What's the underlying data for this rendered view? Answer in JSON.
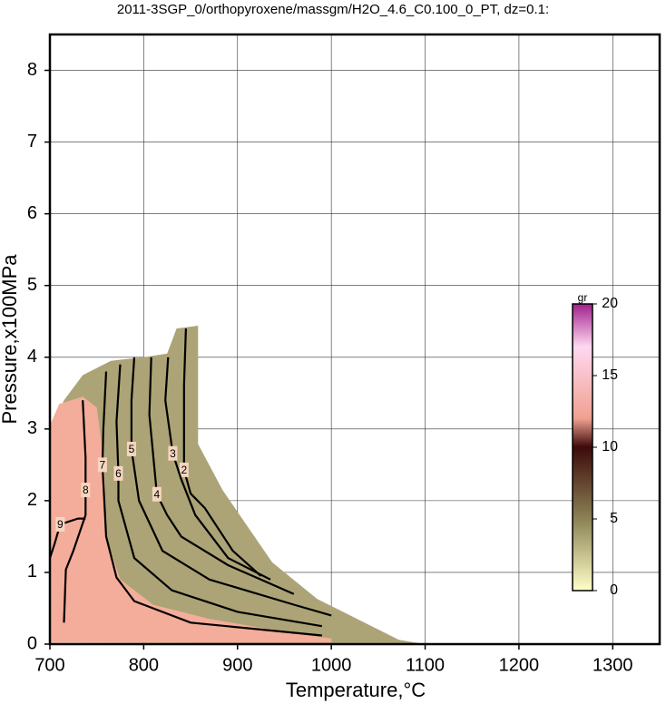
{
  "chart_data": {
    "type": "contour",
    "title": "2011-3SGP_0/orthopyroxene/massgm/H2O_4.6_C0.100_0_PT, dz=0.1:",
    "x_label": "Temperature,°C",
    "y_label": "Pressure,x100MPa",
    "xlim": [
      700,
      1350
    ],
    "ylim": [
      0,
      8.5
    ],
    "xticks": [
      700,
      800,
      900,
      1000,
      1100,
      1200,
      1300
    ],
    "yticks": [
      0,
      1,
      2,
      3,
      4,
      5,
      6,
      7,
      8
    ],
    "grid": true,
    "regions": [
      {
        "color": "#aca476",
        "T": [
          700,
          700,
          715,
          735,
          765,
          800,
          825,
          835,
          858,
          858,
          884,
          937,
          985,
          1043,
          1072,
          1100
        ],
        "P": [
          0.02,
          3.0,
          3.4,
          3.75,
          3.95,
          4.0,
          4.05,
          4.4,
          4.44,
          2.79,
          2.15,
          1.14,
          0.63,
          0.25,
          0.06,
          0.0
        ]
      },
      {
        "color": "#f4ad9a",
        "T": [
          700,
          700,
          710,
          735,
          750,
          758,
          760,
          775,
          810,
          870,
          960,
          1000,
          1000
        ],
        "P": [
          0.02,
          3.05,
          3.35,
          3.45,
          3.3,
          2.5,
          1.5,
          0.9,
          0.55,
          0.35,
          0.15,
          0.08,
          0.02
        ]
      }
    ],
    "contours": [
      {
        "level": 2,
        "T": [
          845,
          843,
          843,
          850,
          865,
          895,
          925
        ],
        "P": [
          4.4,
          3.6,
          2.43,
          2.1,
          1.9,
          1.3,
          0.95
        ]
      },
      {
        "level": 3,
        "T": [
          826,
          823,
          831,
          840,
          855,
          890,
          935
        ],
        "P": [
          4.0,
          3.4,
          2.66,
          2.3,
          1.8,
          1.2,
          0.9
        ]
      },
      {
        "level": 4,
        "T": [
          808,
          806,
          814,
          825,
          840,
          890,
          960
        ],
        "P": [
          4.0,
          3.2,
          2.09,
          1.8,
          1.5,
          1.1,
          0.7
        ]
      },
      {
        "level": 5,
        "T": [
          790,
          787,
          787,
          795,
          820,
          870,
          960,
          1000
        ],
        "P": [
          4.0,
          3.4,
          2.72,
          2.0,
          1.3,
          0.9,
          0.55,
          0.4
        ]
      },
      {
        "level": 6,
        "T": [
          775,
          771,
          773,
          773,
          790,
          830,
          900,
          990
        ],
        "P": [
          3.9,
          3.1,
          2.38,
          2.0,
          1.2,
          0.75,
          0.45,
          0.25
        ]
      },
      {
        "level": 7,
        "T": [
          760,
          757,
          756,
          760,
          771,
          790,
          850,
          990
        ],
        "P": [
          3.8,
          3.0,
          2.5,
          1.5,
          0.93,
          0.6,
          0.3,
          0.12
        ]
      },
      {
        "level": 8,
        "T": [
          735,
          738,
          738,
          738,
          725,
          717,
          715
        ],
        "P": [
          3.4,
          2.6,
          2.15,
          1.8,
          1.3,
          1.04,
          0.3
        ]
      },
      {
        "level": 9,
        "T": [
          700,
          705,
          711,
          730,
          738
        ],
        "P": [
          1.2,
          1.4,
          1.67,
          1.75,
          1.75
        ]
      }
    ],
    "colorbar": {
      "label": "gr",
      "lim": [
        0,
        20
      ],
      "ticks": [
        0,
        5,
        10,
        15,
        20
      ],
      "colormap": [
        [
          0,
          "#ffffc8"
        ],
        [
          5,
          "#8c8255"
        ],
        [
          10,
          "#3c0a0a"
        ],
        [
          12,
          "#f0a090"
        ],
        [
          17,
          "#ffd8f0"
        ],
        [
          20,
          "#a0208c"
        ]
      ]
    }
  }
}
